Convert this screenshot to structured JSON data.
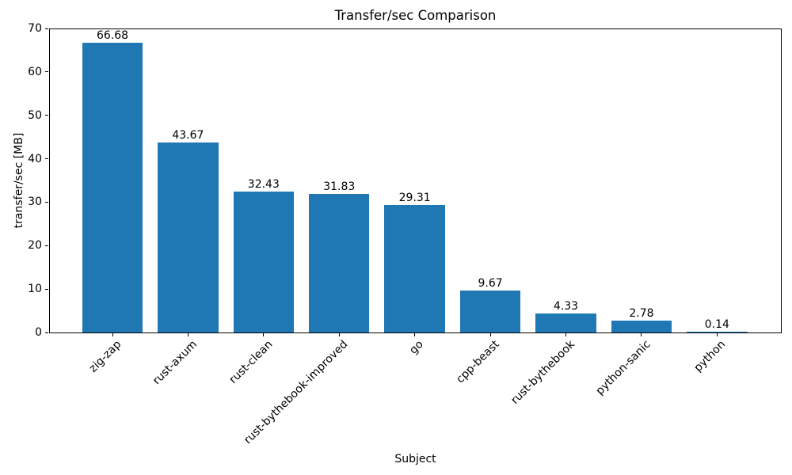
{
  "chart_data": {
    "type": "bar",
    "title": "Transfer/sec Comparison",
    "xlabel": "Subject",
    "ylabel": "transfer/sec [MB]",
    "categories": [
      "zig-zap",
      "rust-axum",
      "rust-clean",
      "rust-bythebook-improved",
      "go",
      "cpp-beast",
      "rust-bythebook",
      "python-sanic",
      "python"
    ],
    "values": [
      66.68,
      43.67,
      32.43,
      31.83,
      29.31,
      9.67,
      4.33,
      2.78,
      0.14
    ],
    "bar_value_labels": [
      "66.68",
      "43.67",
      "32.43",
      "31.83",
      "29.31",
      "9.67",
      "4.33",
      "2.78",
      "0.14"
    ],
    "ylim": [
      0,
      70
    ],
    "yticks": [
      0,
      10,
      20,
      30,
      40,
      50,
      60,
      70
    ],
    "bar_color": "#1f77b4",
    "grid": false,
    "legend": null,
    "x_tick_label_rotation_deg": 45
  }
}
